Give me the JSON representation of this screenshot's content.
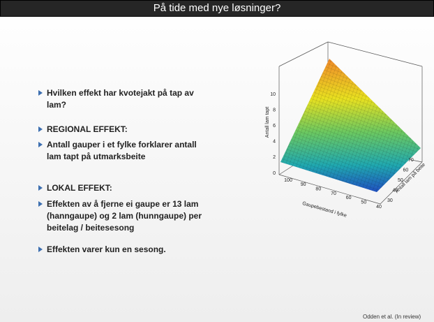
{
  "header": {
    "title": "På tide med nye løsninger?"
  },
  "bullets": [
    {
      "lines": [
        "Hvilken effekt har kvotejakt på tap av",
        "lam?"
      ]
    },
    {
      "lines": [
        "REGIONAL EFFEKT:"
      ]
    },
    {
      "lines": [
        "Antall gauper i et fylke  forklarer antall",
        "lam tapt på utmarksbeite"
      ]
    },
    {
      "lines": [
        "LOKAL EFFEKT:"
      ]
    },
    {
      "lines": [
        "Effekten av å fjerne ei gaupe er 13 lam",
        "(hanngaupe) og 2 lam (hunngaupe) per",
        "beitelag / beitesesong"
      ]
    },
    {
      "lines": [
        "Effekten varer kun en sesong."
      ]
    }
  ],
  "figure": {
    "z_label": "Antall lam tapt",
    "x_label": "Gaupebestand i fylke",
    "y_label": "Antall lam på beite",
    "z_ticks": [
      0,
      2,
      4,
      6,
      8,
      10
    ],
    "x_ticks": [
      100,
      90,
      80,
      70,
      60,
      50,
      40
    ],
    "y_ticks": [
      30,
      40,
      50,
      60,
      70
    ]
  },
  "footer": {
    "source": "Odden et al. (In review)"
  }
}
